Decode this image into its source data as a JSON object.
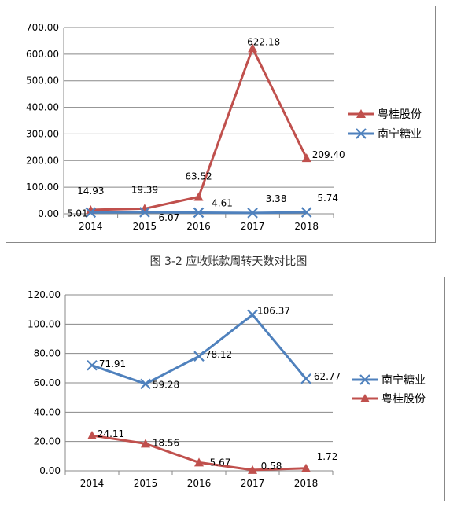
{
  "caption": "图 3-2   应收账款周转天数对比图",
  "chart_data": [
    {
      "type": "line",
      "categories": [
        "2014",
        "2015",
        "2016",
        "2017",
        "2018"
      ],
      "ylim": [
        0,
        700
      ],
      "yticks": [
        "0.00",
        "100.00",
        "200.00",
        "300.00",
        "400.00",
        "500.00",
        "600.00",
        "700.00"
      ],
      "grid": true,
      "legend_position": "right",
      "series": [
        {
          "name": "粤桂股份",
          "color": "#C0504D",
          "marker": "triangle",
          "values": [
            14.93,
            19.39,
            63.52,
            622.18,
            209.4
          ],
          "labels": [
            "14.93",
            "19.39",
            "63.52",
            "622.18",
            "209.40"
          ]
        },
        {
          "name": "南宁糖业",
          "color": "#4F81BD",
          "marker": "x",
          "values": [
            5.01,
            6.07,
            4.61,
            3.38,
            5.74
          ],
          "labels": [
            "5.01",
            "6.07",
            "4.61",
            "3.38",
            "5.74"
          ]
        }
      ]
    },
    {
      "type": "line",
      "categories": [
        "2014",
        "2015",
        "2016",
        "2017",
        "2018"
      ],
      "ylim": [
        0,
        120
      ],
      "yticks": [
        "0.00",
        "20.00",
        "40.00",
        "60.00",
        "80.00",
        "100.00",
        "120.00"
      ],
      "grid": true,
      "legend_position": "right",
      "series": [
        {
          "name": "南宁糖业",
          "color": "#4F81BD",
          "marker": "x",
          "values": [
            71.91,
            59.28,
            78.12,
            106.37,
            62.77
          ],
          "labels": [
            "71.91",
            "59.28",
            "78.12",
            "106.37",
            "62.77"
          ]
        },
        {
          "name": "粤桂股份",
          "color": "#C0504D",
          "marker": "triangle",
          "values": [
            24.11,
            18.56,
            5.67,
            0.58,
            1.72
          ],
          "labels": [
            "24.11",
            "18.56",
            "5.67",
            "0.58",
            "1.72"
          ]
        }
      ]
    }
  ]
}
